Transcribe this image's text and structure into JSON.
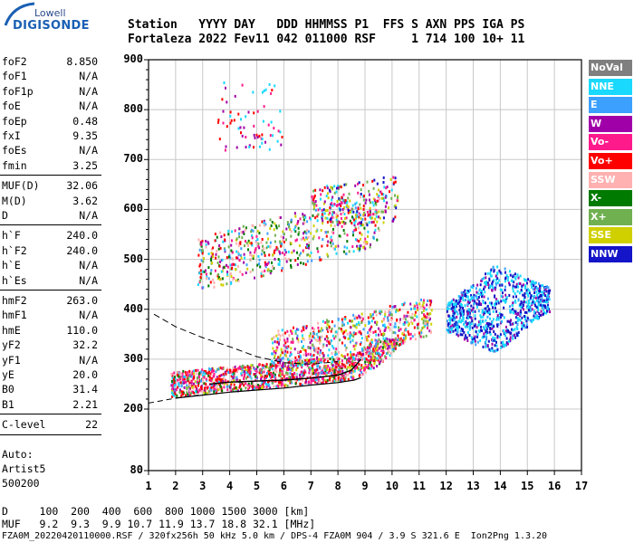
{
  "logo": {
    "line1": "Lowell",
    "line2": "DIGISONDE"
  },
  "header": {
    "row1": "Station   YYYY DAY   DDD HHMMSS P1  FFS S AXN PPS IGA PS",
    "row2": "Fortaleza 2022 Fev11 042 011000 RSF     1 714 100 10+ 11"
  },
  "params_group1": [
    {
      "name": "foF2",
      "value": "8.850"
    },
    {
      "name": "foF1",
      "value": "N/A"
    },
    {
      "name": "foF1p",
      "value": "N/A"
    },
    {
      "name": "foE",
      "value": "N/A"
    },
    {
      "name": "foEp",
      "value": "0.48"
    },
    {
      "name": "fxI",
      "value": "9.35"
    },
    {
      "name": "foEs",
      "value": "N/A"
    },
    {
      "name": "fmin",
      "value": "3.25"
    }
  ],
  "params_group2": [
    {
      "name": "MUF(D)",
      "value": "32.06"
    },
    {
      "name": "M(D)",
      "value": "3.62"
    },
    {
      "name": "D",
      "value": "N/A"
    }
  ],
  "params_group3": [
    {
      "name": "h`F",
      "value": "240.0"
    },
    {
      "name": "h`F2",
      "value": "240.0"
    },
    {
      "name": "h`E",
      "value": "N/A"
    },
    {
      "name": "h`Es",
      "value": "N/A"
    }
  ],
  "params_group4": [
    {
      "name": "hmF2",
      "value": "263.0"
    },
    {
      "name": "hmF1",
      "value": "N/A"
    },
    {
      "name": "hmE",
      "value": "110.0"
    },
    {
      "name": "yF2",
      "value": "32.2"
    },
    {
      "name": "yF1",
      "value": "N/A"
    },
    {
      "name": "yE",
      "value": "20.0"
    },
    {
      "name": "B0",
      "value": "31.4"
    },
    {
      "name": "B1",
      "value": "2.21"
    }
  ],
  "params_group5": [
    {
      "name": "C-level",
      "value": "22"
    }
  ],
  "autoscale": {
    "line1": "Auto:",
    "line2": "Artist5",
    "line3": "500200"
  },
  "legend": [
    {
      "label": "NoVal",
      "color": "#7f7f7f"
    },
    {
      "label": "NNE",
      "color": "#19d9ff"
    },
    {
      "label": "E",
      "color": "#3ca0ff"
    },
    {
      "label": "W",
      "color": "#a000a8"
    },
    {
      "label": "Vo-",
      "color": "#ff1a8c"
    },
    {
      "label": "Vo+",
      "color": "#ff0000"
    },
    {
      "label": "SSW",
      "color": "#ffb0b0"
    },
    {
      "label": "X-",
      "color": "#007a00"
    },
    {
      "label": "X+",
      "color": "#70b050"
    },
    {
      "label": "SSE",
      "color": "#d0d000"
    },
    {
      "label": "NNW",
      "color": "#1414c8"
    }
  ],
  "footer": {
    "d_row": "D     100  200  400  600  800 1000 1500 3000 [km]",
    "muf_row": "MUF   9.2  9.3  9.9 10.7 11.9 13.7 18.8 32.1 [MHz]",
    "file_row": "FZA0M_20220420110000.RSF / 320fx256h 50 kHz 5.0 km / DPS-4 FZA0M 904 / 3.9 S 321.6 E  Ion2Png 1.3.20"
  },
  "chart_data": {
    "type": "scatter",
    "xlim": [
      1,
      17
    ],
    "ylim": [
      80,
      900
    ],
    "x_ticks": [
      1,
      2,
      3,
      4,
      5,
      6,
      7,
      8,
      9,
      10,
      11,
      12,
      13,
      14,
      15,
      16,
      17
    ],
    "y_ticks": [
      80,
      200,
      300,
      400,
      500,
      600,
      700,
      800,
      900
    ],
    "grid": true,
    "legend_placement": "right",
    "o_trace": [
      {
        "x": 3.25,
        "y": 250
      },
      {
        "x": 4,
        "y": 254
      },
      {
        "x": 5,
        "y": 256
      },
      {
        "x": 6,
        "y": 258
      },
      {
        "x": 7,
        "y": 262
      },
      {
        "x": 8,
        "y": 268
      },
      {
        "x": 8.5,
        "y": 278
      },
      {
        "x": 8.85,
        "y": 300
      }
    ],
    "profile_solid": [
      {
        "x": 2.0,
        "y": 222
      },
      {
        "x": 3,
        "y": 228
      },
      {
        "x": 4,
        "y": 234
      },
      {
        "x": 5,
        "y": 238
      },
      {
        "x": 6,
        "y": 242
      },
      {
        "x": 7,
        "y": 248
      },
      {
        "x": 8,
        "y": 253
      },
      {
        "x": 8.6,
        "y": 258
      },
      {
        "x": 8.85,
        "y": 263
      }
    ],
    "profile_dashed": [
      {
        "x": 1.0,
        "y": 212
      },
      {
        "x": 2.0,
        "y": 222
      },
      {
        "x": 3.0,
        "y": 229
      }
    ],
    "profile_upper_dashed": [
      {
        "x": 1.2,
        "y": 390
      },
      {
        "x": 2,
        "y": 365
      },
      {
        "x": 3,
        "y": 343
      },
      {
        "x": 4,
        "y": 325
      },
      {
        "x": 5,
        "y": 305
      },
      {
        "x": 6,
        "y": 293
      },
      {
        "x": 7,
        "y": 290
      },
      {
        "x": 8,
        "y": 295
      }
    ],
    "echo_regions": [
      {
        "name": "F 1-hop",
        "x": [
          1.8,
          11.0
        ],
        "y": [
          225,
          330
        ]
      },
      {
        "name": "F 1-hop upper",
        "x": [
          5.5,
          11.5
        ],
        "y": [
          300,
          430
        ]
      },
      {
        "name": "Spread F",
        "x": [
          12.0,
          15.8
        ],
        "y": [
          300,
          520
        ]
      },
      {
        "name": "F 2-hop",
        "x": [
          2.8,
          9.5
        ],
        "y": [
          455,
          620
        ]
      },
      {
        "name": "F 3-hop",
        "x": [
          7.0,
          10.2
        ],
        "y": [
          580,
          700
        ]
      },
      {
        "name": "F 3-hop faint",
        "x": [
          3.5,
          6.0
        ],
        "y": [
          720,
          860
        ]
      }
    ]
  }
}
